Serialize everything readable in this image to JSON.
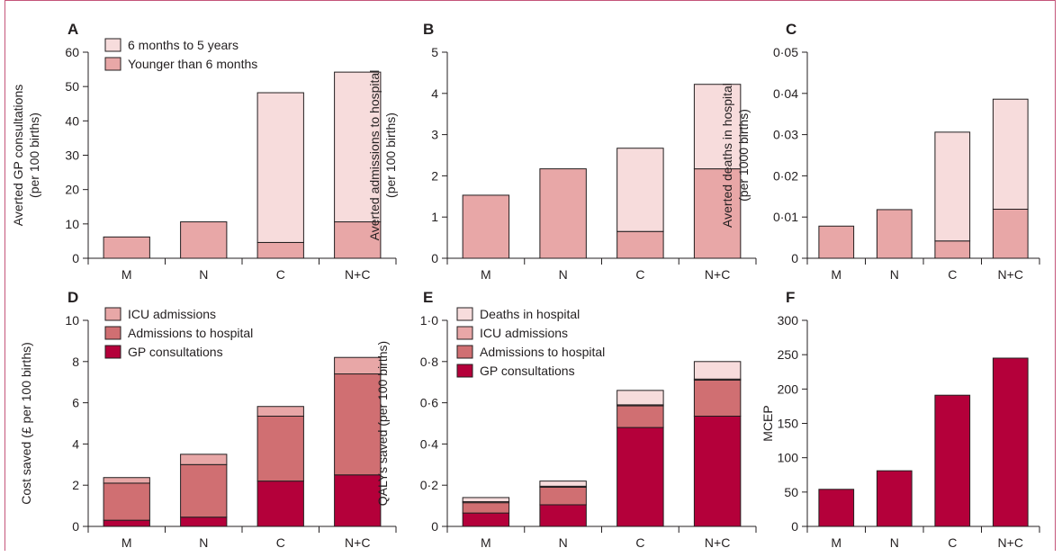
{
  "colors": {
    "light_pink": "#f7dcdc",
    "pink": "#e8a7a7",
    "medium": "#d06f72",
    "crimson": "#b4003a",
    "axis": "#231f20"
  },
  "chart_data": [
    {
      "panel": "A",
      "type": "bar",
      "categories": [
        "M",
        "N",
        "C",
        "N+C"
      ],
      "ylabel": [
        "Averted GP consultations",
        "(per 100 births)"
      ],
      "ylim": [
        0,
        60
      ],
      "yticks": [
        "0",
        "10",
        "20",
        "30",
        "40",
        "50",
        "60"
      ],
      "ytick_values": [
        0,
        10,
        20,
        30,
        40,
        50,
        60
      ],
      "series": [
        {
          "name": "Younger than 6 months",
          "color": "#e8a7a7",
          "values": [
            6.2,
            10.6,
            4.6,
            10.6
          ]
        },
        {
          "name": "6 months to 5 years",
          "color": "#f7dcdc",
          "values": [
            0,
            0,
            43.6,
            43.6
          ]
        }
      ],
      "legend": [
        "6 months to 5 years",
        "Younger than 6 months"
      ],
      "legend_colors": [
        "#f7dcdc",
        "#e8a7a7"
      ]
    },
    {
      "panel": "B",
      "type": "bar",
      "categories": [
        "M",
        "N",
        "C",
        "N+C"
      ],
      "ylabel": [
        "Averted admissions to hospital",
        "(per 100 births)"
      ],
      "ylim": [
        0,
        5
      ],
      "yticks": [
        "0",
        "1",
        "2",
        "3",
        "4",
        "5"
      ],
      "ytick_values": [
        0,
        1,
        2,
        3,
        4,
        5
      ],
      "series": [
        {
          "name": "Younger than 6 months",
          "color": "#e8a7a7",
          "values": [
            1.53,
            2.17,
            0.65,
            2.17
          ]
        },
        {
          "name": "6 months to 5 years",
          "color": "#f7dcdc",
          "values": [
            0,
            0,
            2.02,
            2.05
          ]
        }
      ],
      "legend": [],
      "legend_colors": []
    },
    {
      "panel": "C",
      "type": "bar",
      "categories": [
        "M",
        "N",
        "C",
        "N+C"
      ],
      "ylabel": [
        "Averted deaths in hospital",
        "(per 1000 births)"
      ],
      "ylim": [
        0,
        0.05
      ],
      "yticks": [
        "0",
        "0·01",
        "0·02",
        "0·03",
        "0·04",
        "0·05"
      ],
      "ytick_values": [
        0,
        0.01,
        0.02,
        0.03,
        0.04,
        0.05
      ],
      "series": [
        {
          "name": "Younger than 6 months",
          "color": "#e8a7a7",
          "values": [
            0.0078,
            0.0118,
            0.0042,
            0.0119
          ]
        },
        {
          "name": "6 months to 5 years",
          "color": "#f7dcdc",
          "values": [
            0,
            0,
            0.0264,
            0.0267
          ]
        }
      ],
      "legend": [],
      "legend_colors": []
    },
    {
      "panel": "D",
      "type": "bar",
      "categories": [
        "M",
        "N",
        "C",
        "N+C"
      ],
      "ylabel": [
        "Cost saved (£ per 100 births)"
      ],
      "ylim": [
        0,
        10
      ],
      "yticks": [
        "0",
        "2",
        "4",
        "6",
        "8",
        "10"
      ],
      "ytick_values": [
        0,
        2,
        4,
        6,
        8,
        10
      ],
      "series": [
        {
          "name": "GP consultations",
          "color": "#b4003a",
          "values": [
            0.3,
            0.45,
            2.2,
            2.5
          ]
        },
        {
          "name": "Admissions to hospital",
          "color": "#d06f72",
          "values": [
            1.8,
            2.55,
            3.15,
            4.9
          ]
        },
        {
          "name": "ICU admissions",
          "color": "#e8a7a7",
          "values": [
            0.27,
            0.5,
            0.47,
            0.8
          ]
        }
      ],
      "legend": [
        "ICU admissions",
        "Admissions to hospital",
        "GP consultations"
      ],
      "legend_colors": [
        "#e8a7a7",
        "#d06f72",
        "#b4003a"
      ]
    },
    {
      "panel": "E",
      "type": "bar",
      "categories": [
        "M",
        "N",
        "C",
        "N+C"
      ],
      "ylabel": [
        "QALYs saved (per 100 births)"
      ],
      "ylim": [
        0,
        1.0
      ],
      "yticks": [
        "0",
        "0·2",
        "0·4",
        "0·6",
        "0·8",
        "1·0"
      ],
      "ytick_values": [
        0,
        0.2,
        0.4,
        0.6,
        0.8,
        1.0
      ],
      "series": [
        {
          "name": "GP consultations",
          "color": "#b4003a",
          "values": [
            0.065,
            0.105,
            0.48,
            0.535
          ]
        },
        {
          "name": "Admissions to hospital",
          "color": "#d06f72",
          "values": [
            0.05,
            0.085,
            0.105,
            0.175
          ]
        },
        {
          "name": "ICU admissions",
          "color": "#e8a7a7",
          "values": [
            0.005,
            0.005,
            0.005,
            0.005
          ]
        },
        {
          "name": "Deaths in hospital",
          "color": "#f7dcdc",
          "values": [
            0.02,
            0.025,
            0.07,
            0.085
          ]
        }
      ],
      "legend": [
        "Deaths in hospital",
        "ICU admissions",
        "Admissions to hospital",
        "GP consultations"
      ],
      "legend_colors": [
        "#f7dcdc",
        "#e8a7a7",
        "#d06f72",
        "#b4003a"
      ]
    },
    {
      "panel": "F",
      "type": "bar",
      "categories": [
        "M",
        "N",
        "C",
        "N+C"
      ],
      "ylabel": [
        "MCEP"
      ],
      "ylim": [
        0,
        300
      ],
      "yticks": [
        "0",
        "50",
        "100",
        "150",
        "200",
        "250",
        "300"
      ],
      "ytick_values": [
        0,
        50,
        100,
        150,
        200,
        250,
        300
      ],
      "series": [
        {
          "name": "MCEP",
          "color": "#b4003a",
          "values": [
            54,
            81,
            191,
            245
          ]
        }
      ],
      "legend": [],
      "legend_colors": []
    }
  ]
}
